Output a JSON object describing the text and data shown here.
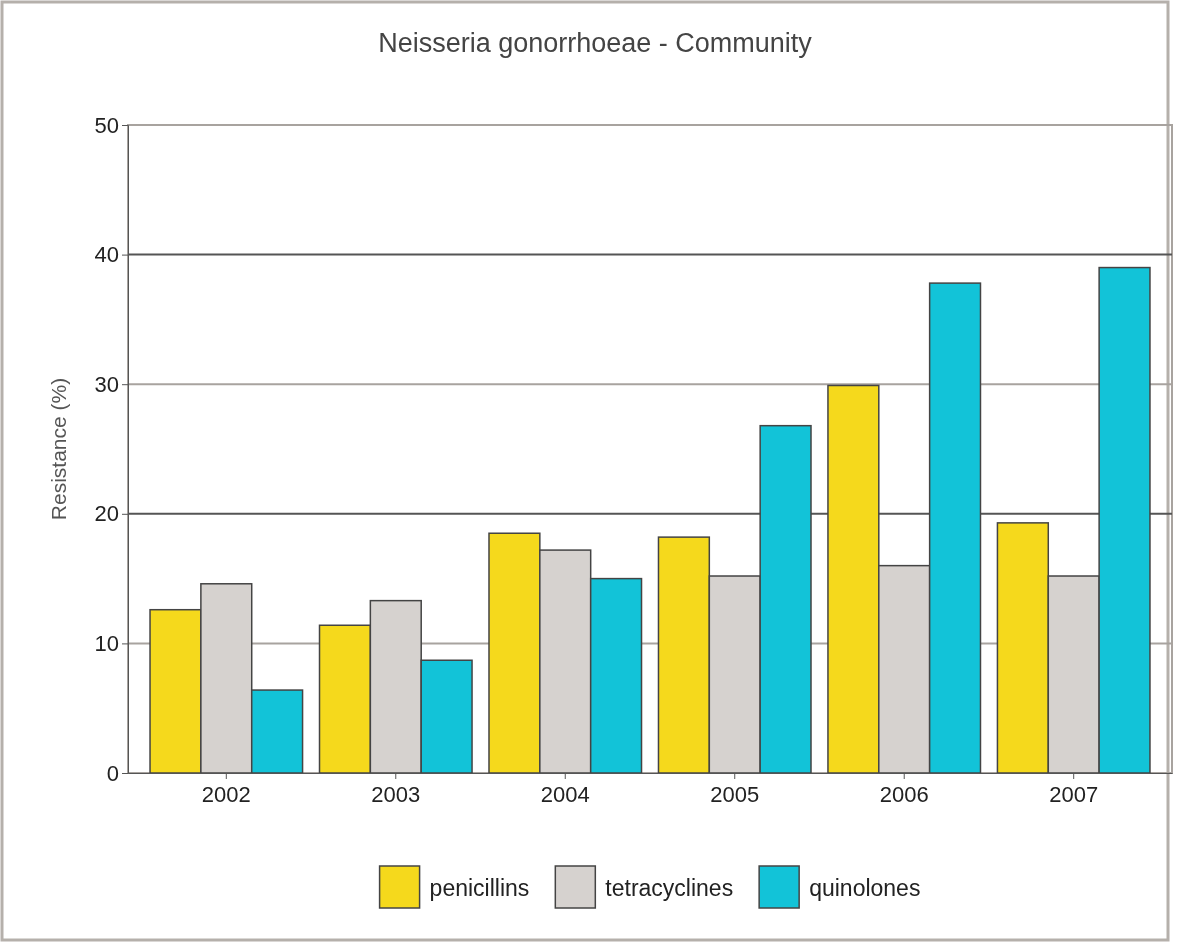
{
  "chart_data": {
    "type": "bar",
    "title": "Neisseria gonorrhoeae - Community",
    "ylabel": "Resistance (%)",
    "categories": [
      "2002",
      "2003",
      "2004",
      "2005",
      "2006",
      "2007"
    ],
    "series": [
      {
        "name": "penicillins",
        "color": "#f5d91c",
        "values": [
          12.6,
          11.4,
          18.5,
          18.2,
          29.9,
          19.3
        ]
      },
      {
        "name": "tetracyclines",
        "color": "#d6d2cf",
        "values": [
          14.6,
          13.3,
          17.2,
          15.2,
          16.0,
          15.2
        ]
      },
      {
        "name": "quinolones",
        "color": "#12c3d8",
        "values": [
          6.4,
          8.7,
          15.0,
          26.8,
          37.8,
          39.0
        ]
      }
    ],
    "ylim": [
      0,
      50
    ],
    "yticks": [
      0,
      10,
      20,
      30,
      40,
      50
    ],
    "grid": "y",
    "legend": "bottom"
  }
}
